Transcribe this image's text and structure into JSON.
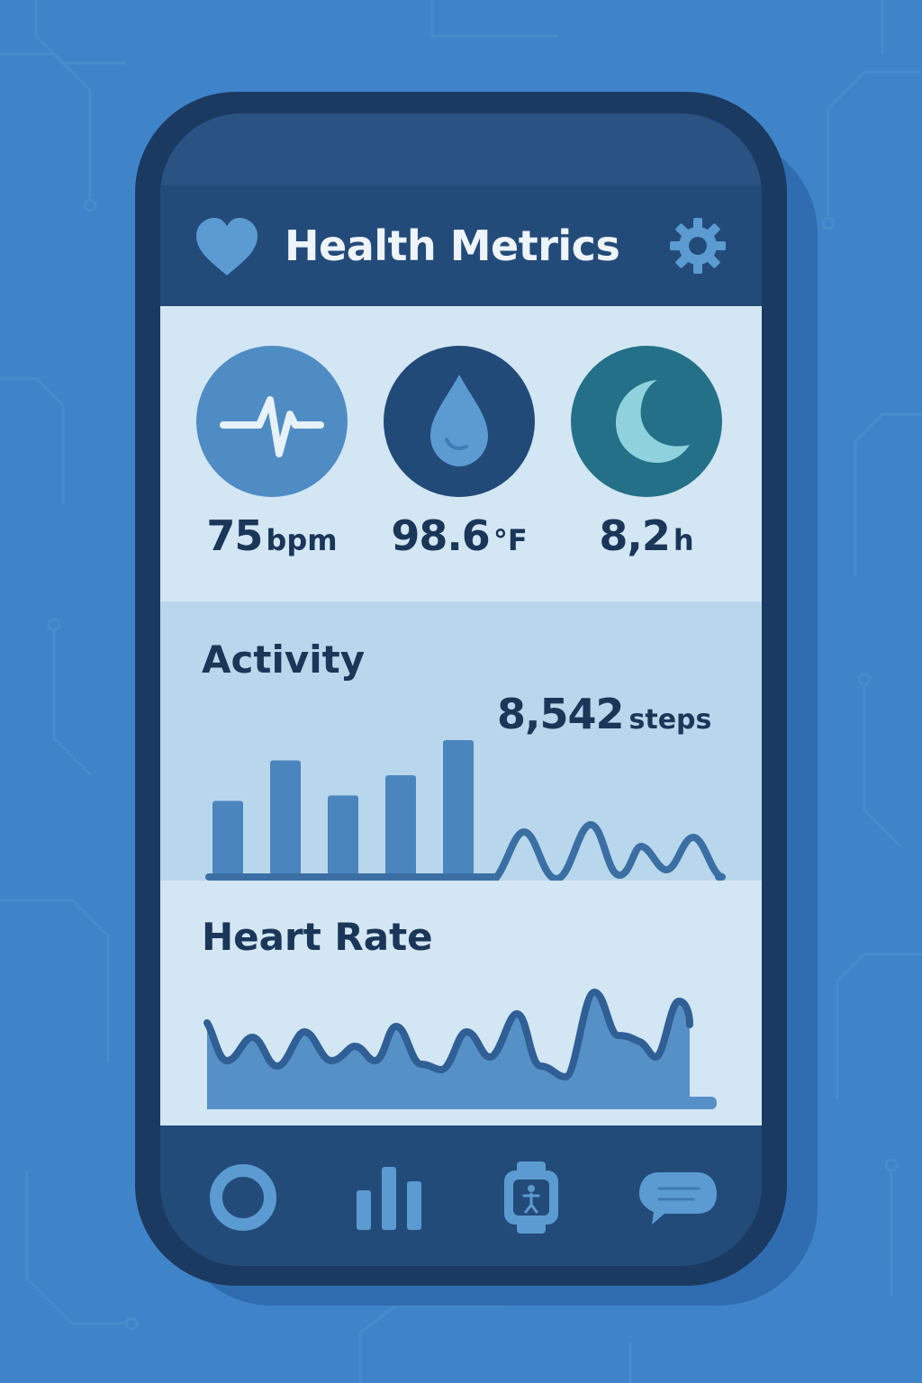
{
  "header": {
    "title": "Health Metrics",
    "icon": "heart-icon",
    "settings_icon": "gear-icon"
  },
  "metrics": [
    {
      "id": "heart",
      "icon": "pulse-icon",
      "value": "75",
      "unit": "bpm",
      "color": "#4f8cc4"
    },
    {
      "id": "temperature",
      "icon": "water-drop-icon",
      "value": "98.6",
      "unit": "°F",
      "color": "#224a78"
    },
    {
      "id": "sleep",
      "icon": "moon-icon",
      "value": "8,2",
      "unit": "h",
      "color": "#237088"
    }
  ],
  "activity": {
    "title": "Activity",
    "steps_value": "8,542",
    "steps_unit": "steps",
    "bars": [
      0.55,
      0.85,
      0.59,
      0.74,
      1.0
    ]
  },
  "heart_rate": {
    "title": "Heart Rate"
  },
  "tabbar": {
    "tabs": [
      {
        "name": "tab-home",
        "icon": "ring-icon"
      },
      {
        "name": "tab-stats",
        "icon": "bar-chart-icon"
      },
      {
        "name": "tab-watch",
        "icon": "smartwatch-icon"
      },
      {
        "name": "tab-messages",
        "icon": "chat-bubble-icon"
      }
    ]
  },
  "colors": {
    "background": "#3f84c8",
    "phone_frame": "#1b3a62",
    "header": "#234b79",
    "panel_light": "#d3e6f4",
    "panel_mid": "#b9d7ec",
    "accent": "#4f8cc4",
    "text_dark": "#1a3658"
  }
}
